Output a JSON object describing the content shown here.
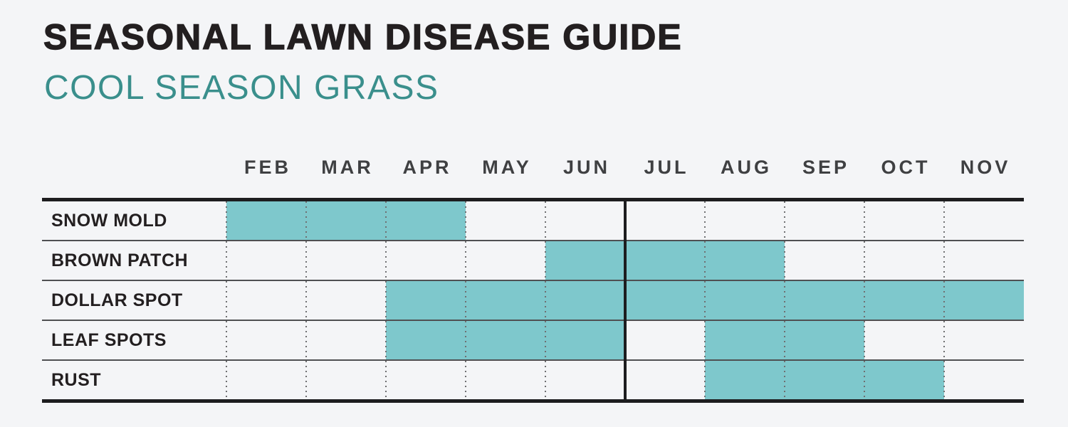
{
  "header": {
    "title": "SEASONAL LAWN DISEASE GUIDE",
    "subtitle": "COOL SEASON GRASS"
  },
  "colors": {
    "background": "#f4f5f7",
    "title_text": "#231f20",
    "subtitle_text": "#3a8f8c",
    "month_label_text": "#3f4042",
    "bar_fill": "#7ec8cc",
    "thick_line": "#1d1d1f",
    "thin_row_line": "#4f5052",
    "dotted_grid_line": "#6f7072"
  },
  "chart_data": {
    "type": "gantt",
    "title": "SEASONAL LAWN DISEASE GUIDE",
    "subtitle": "COOL SEASON GRASS",
    "months": [
      "FEB",
      "MAR",
      "APR",
      "MAY",
      "JUN",
      "JUL",
      "AUG",
      "SEP",
      "OCT",
      "NOV"
    ],
    "rows": [
      {
        "label": "SNOW MOLD",
        "ranges": [
          {
            "start": "FEB",
            "end": "APR"
          }
        ]
      },
      {
        "label": "BROWN PATCH",
        "ranges": [
          {
            "start": "JUN",
            "end": "AUG"
          }
        ]
      },
      {
        "label": "DOLLAR SPOT",
        "ranges": [
          {
            "start": "APR",
            "end": "NOV"
          }
        ]
      },
      {
        "label": "LEAF SPOTS",
        "ranges": [
          {
            "start": "APR",
            "end": "JUN"
          },
          {
            "start": "AUG",
            "end": "SEP"
          }
        ]
      },
      {
        "label": "RUST",
        "ranges": [
          {
            "start": "AUG",
            "end": "OCT"
          }
        ]
      }
    ],
    "solid_divider_before_month": "JUL",
    "grid": "dotted vertical line at each month boundary",
    "legend": "none"
  }
}
